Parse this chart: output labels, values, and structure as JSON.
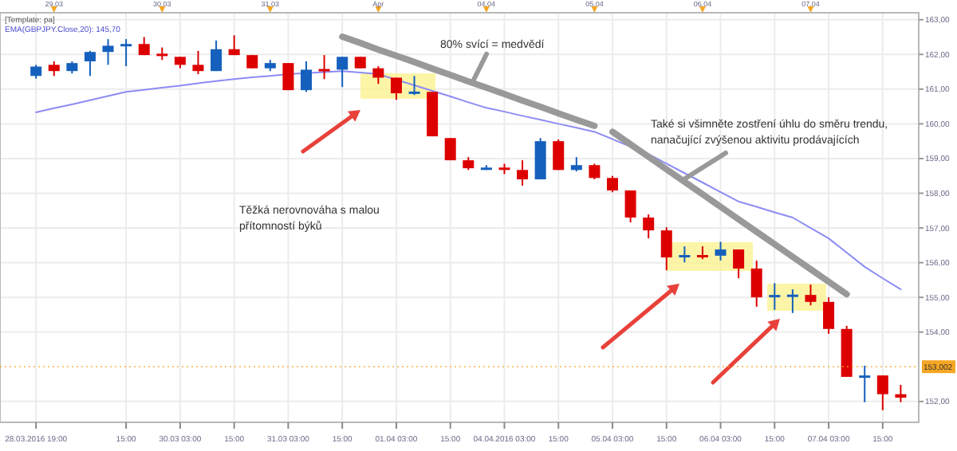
{
  "chart_data": {
    "type": "candlestick",
    "categories": [
      "28.03.2016 19:00",
      null,
      null,
      null,
      null,
      "15:00",
      null,
      null,
      "30.03 03:00",
      null,
      null,
      "15:00",
      null,
      null,
      "31.03 03:00",
      null,
      null,
      "15:00",
      null,
      null,
      "01.04 03:00",
      null,
      null,
      "15:00",
      null,
      null,
      "04.04.2016 03:00",
      null,
      null,
      "15:00",
      null,
      null,
      "05.04 03:00",
      null,
      null,
      "15:00",
      null,
      null,
      "06.04 03:00",
      null,
      null,
      "15:00",
      null,
      null,
      "07.04 03:00",
      null,
      null,
      "15:00",
      null
    ],
    "ohlc": [
      [
        161.38,
        161.7,
        161.3,
        161.65
      ],
      [
        161.7,
        161.8,
        161.38,
        161.52
      ],
      [
        161.52,
        161.8,
        161.45,
        161.75
      ],
      [
        161.8,
        162.1,
        161.38,
        162.07
      ],
      [
        162.07,
        162.44,
        161.7,
        162.25
      ],
      [
        162.25,
        162.44,
        161.66,
        162.3
      ],
      [
        162.3,
        162.5,
        161.98,
        161.98
      ],
      [
        162.02,
        162.2,
        161.84,
        161.98
      ],
      [
        161.93,
        161.93,
        161.6,
        161.7
      ],
      [
        161.7,
        162.1,
        161.43,
        161.52
      ],
      [
        161.52,
        162.4,
        161.52,
        162.15
      ],
      [
        162.15,
        162.55,
        161.98,
        161.98
      ],
      [
        161.98,
        161.98,
        161.6,
        161.6
      ],
      [
        161.6,
        161.84,
        161.52,
        161.75
      ],
      [
        161.75,
        161.75,
        160.97,
        160.97
      ],
      [
        160.97,
        161.8,
        160.92,
        161.56
      ],
      [
        161.58,
        161.98,
        161.29,
        161.54
      ],
      [
        161.56,
        161.93,
        161.06,
        161.93
      ],
      [
        161.93,
        161.93,
        161.6,
        161.6
      ],
      [
        161.6,
        161.66,
        161.15,
        161.33
      ],
      [
        161.33,
        161.33,
        160.69,
        160.88
      ],
      [
        160.9,
        161.38,
        160.83,
        160.93
      ],
      [
        160.92,
        160.92,
        159.64,
        159.64
      ],
      [
        159.59,
        159.59,
        158.95,
        158.95
      ],
      [
        158.95,
        159.04,
        158.67,
        158.72
      ],
      [
        158.7,
        158.81,
        158.67,
        158.74
      ],
      [
        158.74,
        158.85,
        158.55,
        158.7
      ],
      [
        158.67,
        158.95,
        158.22,
        158.4
      ],
      [
        158.4,
        159.59,
        158.4,
        159.5
      ],
      [
        159.5,
        159.55,
        158.67,
        158.67
      ],
      [
        158.67,
        159.04,
        158.63,
        158.81
      ],
      [
        158.81,
        158.85,
        158.4,
        158.44
      ],
      [
        158.44,
        158.5,
        158.03,
        158.08
      ],
      [
        158.08,
        158.08,
        157.16,
        157.3
      ],
      [
        157.3,
        157.39,
        156.7,
        156.93
      ],
      [
        156.93,
        157.02,
        155.78,
        156.15
      ],
      [
        156.18,
        156.47,
        156.01,
        156.22
      ],
      [
        156.22,
        156.47,
        156.1,
        156.18
      ],
      [
        156.2,
        156.6,
        156.06,
        156.38
      ],
      [
        156.38,
        156.38,
        155.55,
        155.83
      ],
      [
        155.83,
        156.06,
        154.73,
        155.0
      ],
      [
        155.03,
        155.41,
        154.64,
        155.07
      ],
      [
        155.05,
        155.23,
        154.55,
        155.08
      ],
      [
        155.07,
        155.37,
        154.77,
        154.87
      ],
      [
        154.87,
        155.0,
        153.95,
        154.09
      ],
      [
        154.09,
        154.18,
        152.71,
        152.71
      ],
      [
        152.71,
        153.03,
        151.98,
        152.75
      ],
      [
        152.75,
        152.75,
        151.75,
        152.21
      ],
      [
        152.21,
        152.48,
        151.98,
        152.11
      ]
    ],
    "colors": [
      "#1560bd",
      "#dd0000",
      "#1560bd",
      "#1560bd",
      "#1560bd",
      "#1560bd",
      "#dd0000",
      "#dd0000",
      "#dd0000",
      "#dd0000",
      "#1560bd",
      "#dd0000",
      "#dd0000",
      "#1560bd",
      "#dd0000",
      "#1560bd",
      "#dd0000",
      "#1560bd",
      "#dd0000",
      "#dd0000",
      "#dd0000",
      "#1560bd",
      "#dd0000",
      "#dd0000",
      "#dd0000",
      "#1560bd",
      "#dd0000",
      "#dd0000",
      "#1560bd",
      "#dd0000",
      "#1560bd",
      "#dd0000",
      "#dd0000",
      "#dd0000",
      "#dd0000",
      "#dd0000",
      "#1560bd",
      "#dd0000",
      "#1560bd",
      "#dd0000",
      "#dd0000",
      "#1560bd",
      "#1560bd",
      "#dd0000",
      "#dd0000",
      "#dd0000",
      "#1560bd",
      "#dd0000",
      "#dd0000"
    ],
    "series": [
      {
        "type": "line",
        "color": "#8c8cf5",
        "values": [
          160.33,
          160.45,
          160.56,
          160.68,
          160.8,
          160.92,
          160.98,
          161.04,
          161.1,
          161.17,
          161.23,
          161.29,
          161.34,
          161.38,
          161.43,
          161.46,
          161.49,
          161.52,
          161.48,
          161.43,
          161.27,
          161.11,
          160.95,
          160.79,
          160.62,
          160.46,
          160.35,
          160.23,
          160.12,
          160.0,
          159.89,
          159.77,
          159.56,
          159.34,
          159.13,
          158.85,
          158.58,
          158.31,
          158.03,
          157.76,
          157.61,
          157.45,
          157.3,
          157.0,
          156.7,
          156.29,
          155.88,
          155.55,
          155.23
        ]
      },
      {
        "type": "line",
        "color": "#999999",
        "values": [
          null,
          null,
          null,
          null,
          null,
          null,
          null,
          null,
          null,
          null,
          null,
          null,
          null,
          null,
          null,
          null,
          null,
          162.51,
          162.33,
          162.14,
          161.96,
          161.78,
          161.59,
          161.41,
          161.22,
          161.04,
          160.86,
          160.67,
          160.49,
          160.3,
          160.12,
          159.94,
          null,
          null,
          null,
          null,
          null,
          null,
          null,
          null,
          null,
          null,
          null,
          null,
          null,
          null,
          null,
          null,
          null
        ]
      },
      {
        "type": "line",
        "color": "#999999",
        "values": [
          null,
          null,
          null,
          null,
          null,
          null,
          null,
          null,
          null,
          null,
          null,
          null,
          null,
          null,
          null,
          null,
          null,
          null,
          null,
          null,
          null,
          null,
          null,
          null,
          null,
          null,
          null,
          null,
          null,
          null,
          null,
          null,
          159.77,
          159.41,
          159.05,
          158.69,
          158.33,
          157.97,
          157.61,
          157.25,
          156.89,
          156.53,
          156.17,
          155.81,
          155.45,
          155.09,
          null,
          null,
          null
        ]
      }
    ],
    "ylim": [
      151.4,
      163.2
    ],
    "yticks": [
      {
        "value": 152,
        "label": "152,00"
      },
      {
        "value": 154,
        "label": "154,00"
      },
      {
        "value": 155,
        "label": "155,00"
      },
      {
        "value": 156,
        "label": "156,00"
      },
      {
        "value": 157,
        "label": "157,00"
      },
      {
        "value": 158,
        "label": "158,00"
      },
      {
        "value": 159,
        "label": "159,00"
      },
      {
        "value": 160,
        "label": "160,00"
      },
      {
        "value": 161,
        "label": "161,00"
      },
      {
        "value": 162,
        "label": "162,00"
      },
      {
        "value": 163,
        "label": "163,00"
      }
    ],
    "ref_lines": [
      {
        "axis": "y",
        "value": 153.002,
        "label": "153,002",
        "color": "#f5a623"
      }
    ],
    "grid": true,
    "annotations": [
      "[Template: pa]",
      "EMA(GBPJPY.Close,20): 145,70",
      "80% svící = medvědí",
      "Také si všimněte zostření úhlu do směru trendu,\nnanačující zvýšenou aktivitu prodávajících",
      "Těžká nerovnováha s malou\npřítomností býků",
      "29.03",
      "30.03",
      "31.03",
      "Apr",
      "04.04",
      "05.04",
      "06.04",
      "07.04"
    ]
  }
}
